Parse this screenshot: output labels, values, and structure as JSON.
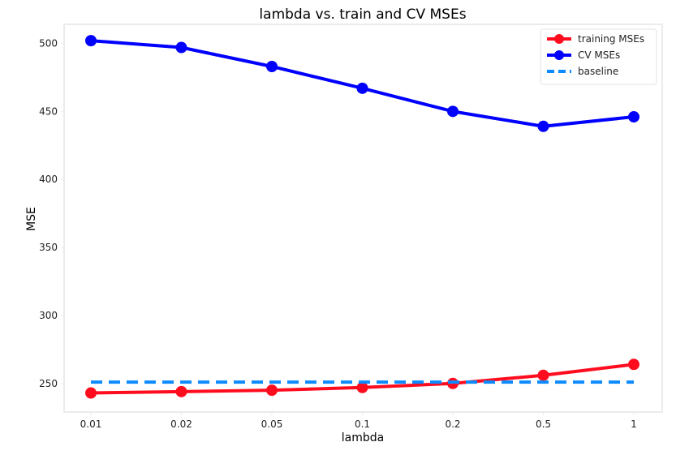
{
  "chart_data": {
    "type": "line",
    "title": "lambda vs. train and CV MSEs",
    "xlabel": "lambda",
    "ylabel": "MSE",
    "categories": [
      "0.01",
      "0.02",
      "0.05",
      "0.1",
      "0.2",
      "0.5",
      "1"
    ],
    "ylim": [
      229,
      514
    ],
    "yticks": [
      250,
      300,
      350,
      400,
      450,
      500
    ],
    "grid": false,
    "legend_position": "top-right",
    "series": [
      {
        "name": "training MSEs",
        "color": "#ff0d1f",
        "marker": "circle",
        "linestyle": "solid",
        "values": [
          243,
          244,
          245,
          247,
          250,
          256,
          264
        ]
      },
      {
        "name": "CV MSEs",
        "color": "#0000ff",
        "marker": "circle",
        "linestyle": "solid",
        "values": [
          502,
          497,
          483,
          467,
          450,
          439,
          446
        ]
      },
      {
        "name": "baseline",
        "color": "#0d8aff",
        "marker": "none",
        "linestyle": "dashed",
        "values": [
          251,
          251,
          251,
          251,
          251,
          251,
          251
        ]
      }
    ]
  }
}
